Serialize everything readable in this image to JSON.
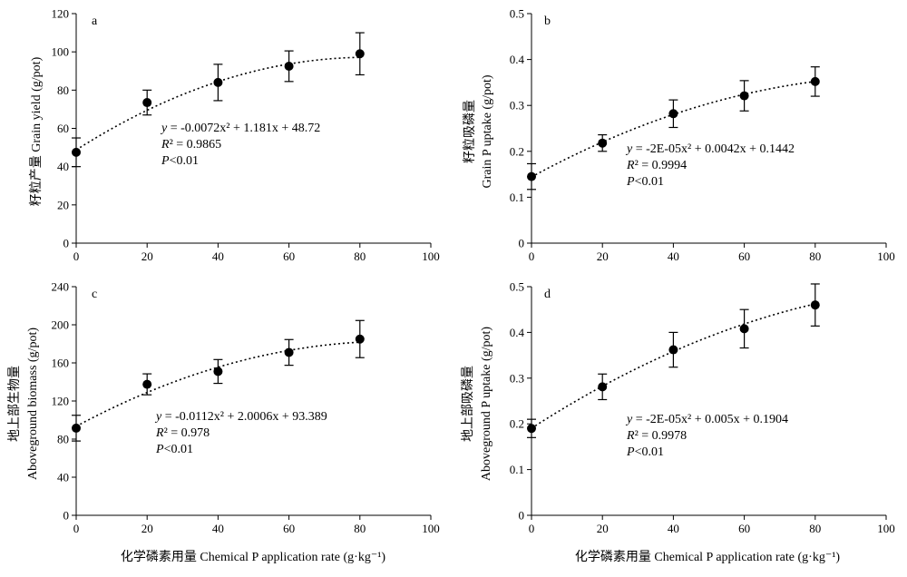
{
  "figure": {
    "x_axis_title": "化学磷素用量 Chemical P application rate (g·kg⁻¹)"
  },
  "chart_data": [
    {
      "id": "a",
      "type": "scatter",
      "panel_label": "a",
      "ylabel_cn": "籽粒产量 Grain yield (g/pot)",
      "ylabel_en": "",
      "xlim": [
        0,
        100
      ],
      "ylim": [
        0,
        120
      ],
      "xticks": [
        0,
        20,
        40,
        60,
        80,
        100
      ],
      "yticks": [
        0,
        20,
        40,
        60,
        80,
        100,
        120
      ],
      "ytick_labels": [
        "0",
        "20",
        "40",
        "60",
        "80",
        "100",
        "120"
      ],
      "x": [
        0,
        20,
        40,
        60,
        80
      ],
      "y": [
        47.5,
        73.5,
        84.0,
        92.5,
        99.0
      ],
      "y_err": [
        7.5,
        6.5,
        9.5,
        8.0,
        11.0
      ],
      "fit": {
        "a": -0.0072,
        "b": 1.181,
        "c": 48.72,
        "style": "dotted"
      },
      "equation": {
        "y_pre": "y",
        "eq_rest": " = -0.0072x² + 1.181x + 48.72",
        "r_sym": "R",
        "r2": "² = 0.9865",
        "p_sym": "P",
        "p": "<0.01"
      }
    },
    {
      "id": "b",
      "type": "scatter",
      "panel_label": "b",
      "ylabel_cn": "籽粒吸磷量",
      "ylabel_en": "Grain P uptake (g/pot)",
      "xlim": [
        0,
        100
      ],
      "ylim": [
        0,
        0.5
      ],
      "xticks": [
        0,
        20,
        40,
        60,
        80,
        100
      ],
      "yticks": [
        0,
        0.1,
        0.2,
        0.3,
        0.4,
        0.5
      ],
      "ytick_labels": [
        "0",
        "0.1",
        "0.2",
        "0.3",
        "0.4",
        "0.5"
      ],
      "x": [
        0,
        20,
        40,
        60,
        80
      ],
      "y": [
        0.145,
        0.218,
        0.282,
        0.321,
        0.352
      ],
      "y_err": [
        0.028,
        0.018,
        0.03,
        0.033,
        0.032
      ],
      "fit": {
        "a": -2e-05,
        "b": 0.0042,
        "c": 0.1442,
        "style": "dotted"
      },
      "equation": {
        "y_pre": "y",
        "eq_rest": " = -2E-05x² + 0.0042x + 0.1442",
        "r_sym": "R",
        "r2": "² = 0.9994",
        "p_sym": "P",
        "p": "<0.01"
      }
    },
    {
      "id": "c",
      "type": "scatter",
      "panel_label": "c",
      "ylabel_cn": "地上部生物量",
      "ylabel_en": "Aboveground biomass (g/pot)",
      "xlim": [
        0,
        100
      ],
      "ylim": [
        0,
        240
      ],
      "xticks": [
        0,
        20,
        40,
        60,
        80,
        100
      ],
      "yticks": [
        0,
        40,
        80,
        120,
        160,
        200,
        240
      ],
      "ytick_labels": [
        "0",
        "40",
        "80",
        "120",
        "160",
        "200",
        "240"
      ],
      "x": [
        0,
        20,
        40,
        60,
        80
      ],
      "y": [
        91.5,
        137.5,
        151.0,
        171.0,
        185.0
      ],
      "y_err": [
        13.5,
        11.0,
        12.5,
        13.5,
        19.5
      ],
      "fit": {
        "a": -0.0112,
        "b": 2.0006,
        "c": 93.389,
        "style": "dotted"
      },
      "equation": {
        "y_pre": "y",
        "eq_rest": " = -0.0112x² + 2.0006x + 93.389",
        "r_sym": "R",
        "r2": "² = 0.978",
        "p_sym": "P",
        "p": "<0.01"
      }
    },
    {
      "id": "d",
      "type": "scatter",
      "panel_label": "d",
      "ylabel_cn": "地上部吸磷量",
      "ylabel_en": "Aboveground P uptake (g/pot)",
      "xlim": [
        0,
        100
      ],
      "ylim": [
        0,
        0.5
      ],
      "xticks": [
        0,
        20,
        40,
        60,
        80,
        100
      ],
      "yticks": [
        0,
        0.1,
        0.2,
        0.3,
        0.4,
        0.5
      ],
      "ytick_labels": [
        "0",
        "0.1",
        "0.2",
        "0.3",
        "0.4",
        "0.5"
      ],
      "x": [
        0,
        20,
        40,
        60,
        80
      ],
      "y": [
        0.19,
        0.281,
        0.362,
        0.408,
        0.46
      ],
      "y_err": [
        0.02,
        0.028,
        0.038,
        0.042,
        0.046
      ],
      "fit": {
        "a": -2e-05,
        "b": 0.005,
        "c": 0.1904,
        "style": "dotted"
      },
      "equation": {
        "y_pre": "y",
        "eq_rest": " = -2E-05x² + 0.005x + 0.1904",
        "r_sym": "R",
        "r2": "² = 0.9978",
        "p_sym": "P",
        "p": "<0.01"
      }
    }
  ]
}
